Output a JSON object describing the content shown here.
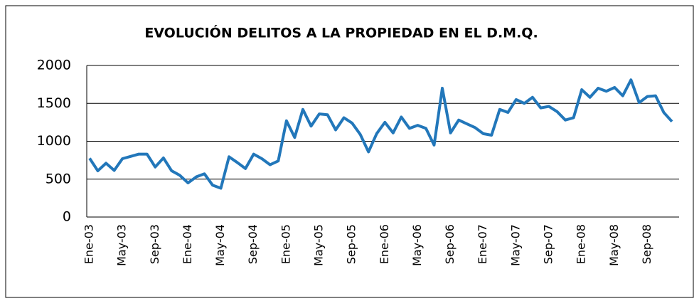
{
  "chart_data": {
    "type": "line",
    "title": "EVOLUCIÓN DELITOS A LA PROPIEDAD EN EL D.M.Q.",
    "categories": [
      "Ene-03",
      null,
      null,
      null,
      "May-03",
      null,
      null,
      null,
      "Sep-03",
      null,
      null,
      null,
      "Ene-04",
      null,
      null,
      null,
      "May-04",
      null,
      null,
      null,
      "Sep-04",
      null,
      null,
      null,
      "Ene-05",
      null,
      null,
      null,
      "May-05",
      null,
      null,
      null,
      "Sep-05",
      null,
      null,
      null,
      "Ene-06",
      null,
      null,
      null,
      "May-06",
      null,
      null,
      null,
      "Sep-06",
      null,
      null,
      null,
      "Ene-07",
      null,
      null,
      null,
      "May-07",
      null,
      null,
      null,
      "Sep-07",
      null,
      null,
      null,
      "Ene-08",
      null,
      null,
      null,
      "May-08",
      null,
      null,
      null,
      "Sep-08",
      null,
      null,
      null
    ],
    "values": [
      775,
      610,
      710,
      615,
      770,
      800,
      830,
      830,
      660,
      780,
      610,
      550,
      450,
      530,
      570,
      420,
      380,
      795,
      720,
      640,
      830,
      770,
      690,
      740,
      1270,
      1050,
      1420,
      1200,
      1360,
      1350,
      1150,
      1310,
      1240,
      1090,
      860,
      1100,
      1250,
      1110,
      1320,
      1170,
      1210,
      1170,
      950,
      1700,
      1110,
      1280,
      1230,
      1180,
      1100,
      1080,
      1420,
      1380,
      1550,
      1500,
      1580,
      1440,
      1460,
      1390,
      1280,
      1310,
      1680,
      1580,
      1700,
      1660,
      1710,
      1600,
      1810,
      1510,
      1590,
      1600,
      1380,
      1260
    ],
    "color": "#2277ba",
    "ylim": [
      0,
      2000
    ],
    "yticks": [
      0,
      500,
      1000,
      1500,
      2000
    ],
    "grid": true
  }
}
